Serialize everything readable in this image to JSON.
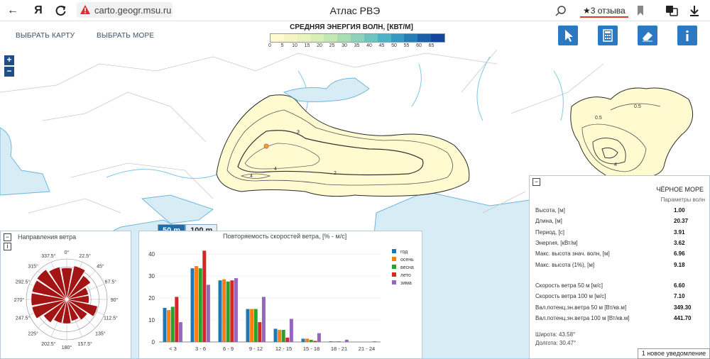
{
  "browser": {
    "back_icon": "←",
    "logo": "Я",
    "url": "carto.geogr.msu.ru",
    "title": "Атлас РВЭ",
    "reviews": "★3 отзыва"
  },
  "toolbar": {
    "select_map": "ВЫБРАТЬ КАРТУ",
    "select_sea": "ВЫБРАТЬ МОРЕ"
  },
  "legend": {
    "title": "СРЕДНЯЯ ЭНЕРГИЯ ВОЛН, [КВТ/М]",
    "ticks": [
      "0",
      "5",
      "10",
      "15",
      "20",
      "25",
      "30",
      "35",
      "40",
      "45",
      "50",
      "55",
      "60",
      "65"
    ],
    "colors": [
      "#fffad0",
      "#f4f4c4",
      "#e9f3bd",
      "#d7eeb6",
      "#c4e8b4",
      "#a8ddb5",
      "#8fd2bb",
      "#6fc3c1",
      "#4fb2c6",
      "#3898c0",
      "#2a7ab4",
      "#1d5ea6",
      "#14469a"
    ]
  },
  "zoom": {
    "in": "+",
    "out": "−"
  },
  "contours": {
    "black_sea": [
      "1",
      "3",
      "4",
      "4",
      "2",
      "1"
    ],
    "caspian": [
      "0.5",
      "0.5",
      "4",
      "3"
    ]
  },
  "wind_rose": {
    "title": "Направления ветра",
    "directions": [
      "0°",
      "22.5°",
      "45°",
      "67.5°",
      "90°",
      "112.5°",
      "135°",
      "157.5°",
      "180°",
      "202.5°",
      "225°",
      "247.5°",
      "270°",
      "292.5°",
      "315°",
      "337.5°"
    ],
    "values": [
      0.78,
      0.85,
      0.72,
      0.55,
      0.55,
      0.78,
      0.62,
      0.55,
      0.6,
      0.6,
      0.7,
      0.88,
      0.88,
      0.88,
      0.9,
      0.82
    ],
    "color": "#a31414"
  },
  "tabs": {
    "tab1": "50 m",
    "tab2": "100 m"
  },
  "chart_data": {
    "type": "bar",
    "title": "Повторяемость скоростей ветра, [% - м/с]",
    "categories": [
      "< 3",
      "3 - 6",
      "6 - 9",
      "9 - 12",
      "12 - 15",
      "15 - 18",
      "18 - 21",
      "21 - 24"
    ],
    "ylim": [
      0,
      40
    ],
    "yticks": [
      "0",
      "10",
      "20",
      "30",
      "40"
    ],
    "legend_position": "right",
    "series": [
      {
        "name": "год",
        "color": "#1f77b4",
        "values": [
          15.5,
          33.5,
          28.0,
          15.0,
          6.0,
          1.5,
          0.3,
          0.0
        ]
      },
      {
        "name": "осень",
        "color": "#ff7f0e",
        "values": [
          14.5,
          34.5,
          28.5,
          15.0,
          5.5,
          1.5,
          0.3,
          0.0
        ]
      },
      {
        "name": "весна",
        "color": "#2ca02c",
        "values": [
          16.0,
          33.5,
          27.5,
          15.0,
          5.5,
          1.0,
          0.3,
          0.0
        ]
      },
      {
        "name": "лето",
        "color": "#d62728",
        "values": [
          20.5,
          41.5,
          28.0,
          9.0,
          2.0,
          0.5,
          0.0,
          0.0
        ]
      },
      {
        "name": "зима",
        "color": "#9467bd",
        "values": [
          9.0,
          26.0,
          29.0,
          20.5,
          10.5,
          4.0,
          1.0,
          0.3
        ]
      }
    ]
  },
  "info": {
    "sea": "ЧЁРНОЕ МОРЕ",
    "subtitle": "Параметры волн",
    "rows1": [
      {
        "label": "Высота, [м]",
        "value": "1.00"
      },
      {
        "label": "Длина, [м]",
        "value": "20.37"
      },
      {
        "label": "Период, [с]",
        "value": "3.91"
      },
      {
        "label": "Энергия, [кВт/м]",
        "value": "3.62"
      },
      {
        "label": "Макс. высота знач. волн, [м]",
        "value": "6.96"
      },
      {
        "label": "Макс. высота (1%), [м]",
        "value": "9.18"
      }
    ],
    "rows2": [
      {
        "label": "Скорость ветра 50 м [м/с]",
        "value": "6.60"
      },
      {
        "label": "Скорость ветра 100 м [м/с]",
        "value": "7.10"
      },
      {
        "label": "Вал.потенц.эн.ветра 50 м [Вт/кв.м]",
        "value": "349.30"
      },
      {
        "label": "Вал.потенц.эн.ветра 100 м [Вт/кв.м]",
        "value": "441.70"
      }
    ],
    "latitude": "Широта: 43.58°",
    "longitude": "Долгота: 30.47°"
  },
  "notification": "1 новое уведомление"
}
